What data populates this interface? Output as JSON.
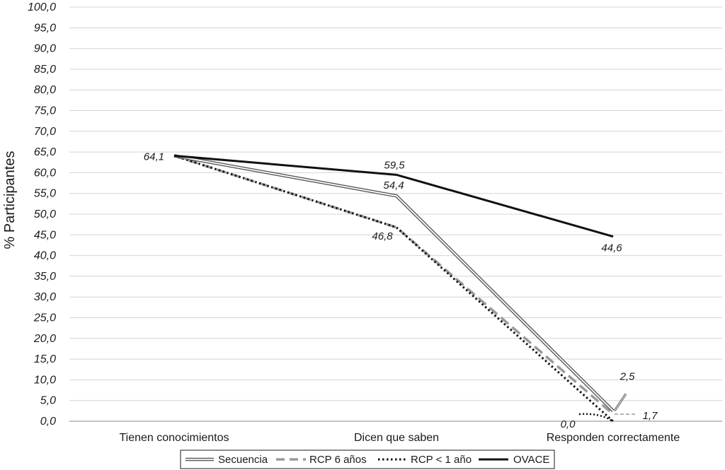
{
  "chart_data": {
    "type": "line",
    "title": "",
    "xlabel": "",
    "ylabel": "% Participantes",
    "categories": [
      "Tienen conocimientos",
      "Dicen que saben",
      "Responden correctamente"
    ],
    "ylim": [
      0,
      100
    ],
    "yticks": [
      "0,0",
      "5,0",
      "10,0",
      "15,0",
      "20,0",
      "25,0",
      "30,0",
      "35,0",
      "40,0",
      "45,0",
      "50,0",
      "55,0",
      "60,0",
      "65,0",
      "70,0",
      "75,0",
      "80,0",
      "85,0",
      "90,0",
      "95,0",
      "100,0"
    ],
    "grid": true,
    "legend_position": "bottom",
    "series": [
      {
        "name": "Secuencia",
        "style": "double",
        "color": "#555555",
        "values": [
          64.1,
          54.4,
          2.5
        ]
      },
      {
        "name": "RCP 6 años",
        "style": "dashed",
        "color": "#9a9a9a",
        "values": [
          64.1,
          46.8,
          1.7
        ]
      },
      {
        "name": "RCP < 1 año",
        "style": "dotted",
        "color": "#111111",
        "values": [
          64.1,
          46.8,
          0.0
        ]
      },
      {
        "name": "OVACE",
        "style": "solid",
        "color": "#111111",
        "values": [
          64.1,
          59.5,
          44.6
        ]
      }
    ],
    "data_labels": [
      {
        "text": "64,1",
        "series": 3,
        "point": 0
      },
      {
        "text": "59,5",
        "series": 3,
        "point": 1
      },
      {
        "text": "54,4",
        "series": 0,
        "point": 1
      },
      {
        "text": "46,8",
        "series": 1,
        "point": 1
      },
      {
        "text": "44,6",
        "series": 3,
        "point": 2
      },
      {
        "text": "2,5",
        "series": 0,
        "point": 2
      },
      {
        "text": "1,7",
        "series": 1,
        "point": 2
      },
      {
        "text": "0,0",
        "series": 2,
        "point": 2
      }
    ]
  }
}
